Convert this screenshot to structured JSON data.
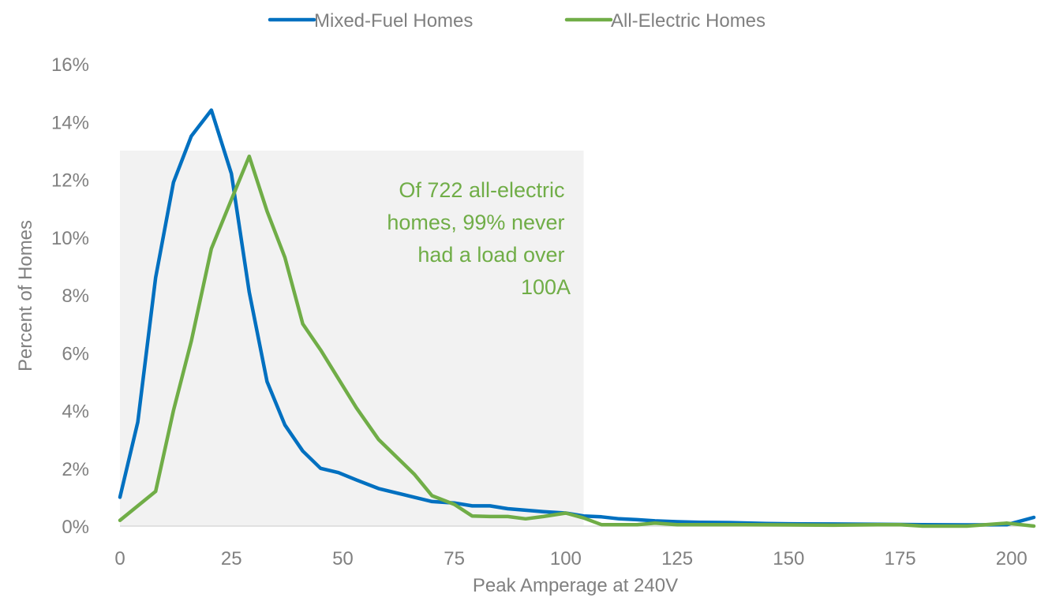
{
  "chart_data": {
    "type": "line",
    "title": "",
    "xlabel": "Peak Amperage at 240V",
    "ylabel": "Percent of Homes",
    "xlim": [
      0,
      205
    ],
    "ylim": [
      0,
      16
    ],
    "x_ticks": [
      "0",
      "25",
      "50",
      "75",
      "100",
      "125",
      "150",
      "175",
      "200"
    ],
    "y_ticks": [
      "0%",
      "2%",
      "4%",
      "6%",
      "8%",
      "10%",
      "12%",
      "14%",
      "16%"
    ],
    "legend_position": "top-center",
    "grid": false,
    "highlight_region": {
      "x_range": [
        0,
        104
      ],
      "y_range": [
        0,
        13
      ],
      "color": "#f2f2f2"
    },
    "annotation": {
      "lines": [
        "Of 722 all-electric",
        "homes, 99% never",
        "had a load over",
        "100A"
      ],
      "color": "#70ad47"
    },
    "series": [
      {
        "name": "Mixed-Fuel Homes",
        "color": "#0070c0",
        "points": [
          [
            0,
            1.0
          ],
          [
            4,
            3.6
          ],
          [
            8,
            8.6
          ],
          [
            12,
            11.9
          ],
          [
            16,
            13.5
          ],
          [
            20.5,
            14.4
          ],
          [
            25,
            12.2
          ],
          [
            29,
            8.1
          ],
          [
            33,
            5.0
          ],
          [
            37,
            3.5
          ],
          [
            41,
            2.6
          ],
          [
            45,
            2.0
          ],
          [
            49,
            1.85
          ],
          [
            53,
            1.6
          ],
          [
            58,
            1.3
          ],
          [
            62,
            1.15
          ],
          [
            66,
            1.0
          ],
          [
            70,
            0.85
          ],
          [
            75,
            0.8
          ],
          [
            79,
            0.7
          ],
          [
            83,
            0.7
          ],
          [
            87,
            0.6
          ],
          [
            91,
            0.55
          ],
          [
            95,
            0.5
          ],
          [
            100,
            0.45
          ],
          [
            104,
            0.35
          ],
          [
            108,
            0.32
          ],
          [
            112,
            0.25
          ],
          [
            116,
            0.22
          ],
          [
            120,
            0.18
          ],
          [
            125,
            0.15
          ],
          [
            130,
            0.13
          ],
          [
            137,
            0.12
          ],
          [
            145,
            0.09
          ],
          [
            150,
            0.08
          ],
          [
            160,
            0.07
          ],
          [
            170,
            0.06
          ],
          [
            180,
            0.05
          ],
          [
            190,
            0.04
          ],
          [
            199,
            0.05
          ],
          [
            205,
            0.3
          ]
        ]
      },
      {
        "name": "All-Electric Homes",
        "color": "#70ad47",
        "points": [
          [
            0,
            0.2
          ],
          [
            8,
            1.2
          ],
          [
            12,
            4.0
          ],
          [
            16,
            6.4
          ],
          [
            20.5,
            9.6
          ],
          [
            25,
            11.3
          ],
          [
            29,
            12.8
          ],
          [
            33,
            10.9
          ],
          [
            37,
            9.3
          ],
          [
            41,
            7.0
          ],
          [
            45,
            6.1
          ],
          [
            49,
            5.1
          ],
          [
            53,
            4.1
          ],
          [
            58,
            3.0
          ],
          [
            62,
            2.4
          ],
          [
            66,
            1.8
          ],
          [
            70,
            1.05
          ],
          [
            75,
            0.75
          ],
          [
            79,
            0.35
          ],
          [
            83,
            0.33
          ],
          [
            87,
            0.33
          ],
          [
            91,
            0.25
          ],
          [
            95,
            0.33
          ],
          [
            100,
            0.45
          ],
          [
            104,
            0.28
          ],
          [
            108,
            0.05
          ],
          [
            112,
            0.05
          ],
          [
            116,
            0.05
          ],
          [
            120,
            0.1
          ],
          [
            125,
            0.05
          ],
          [
            130,
            0.05
          ],
          [
            140,
            0.05
          ],
          [
            150,
            0.04
          ],
          [
            160,
            0.03
          ],
          [
            170,
            0.05
          ],
          [
            175,
            0.05
          ],
          [
            180,
            0.0
          ],
          [
            190,
            0.0
          ],
          [
            199,
            0.1
          ],
          [
            205,
            0.0
          ]
        ]
      }
    ]
  }
}
